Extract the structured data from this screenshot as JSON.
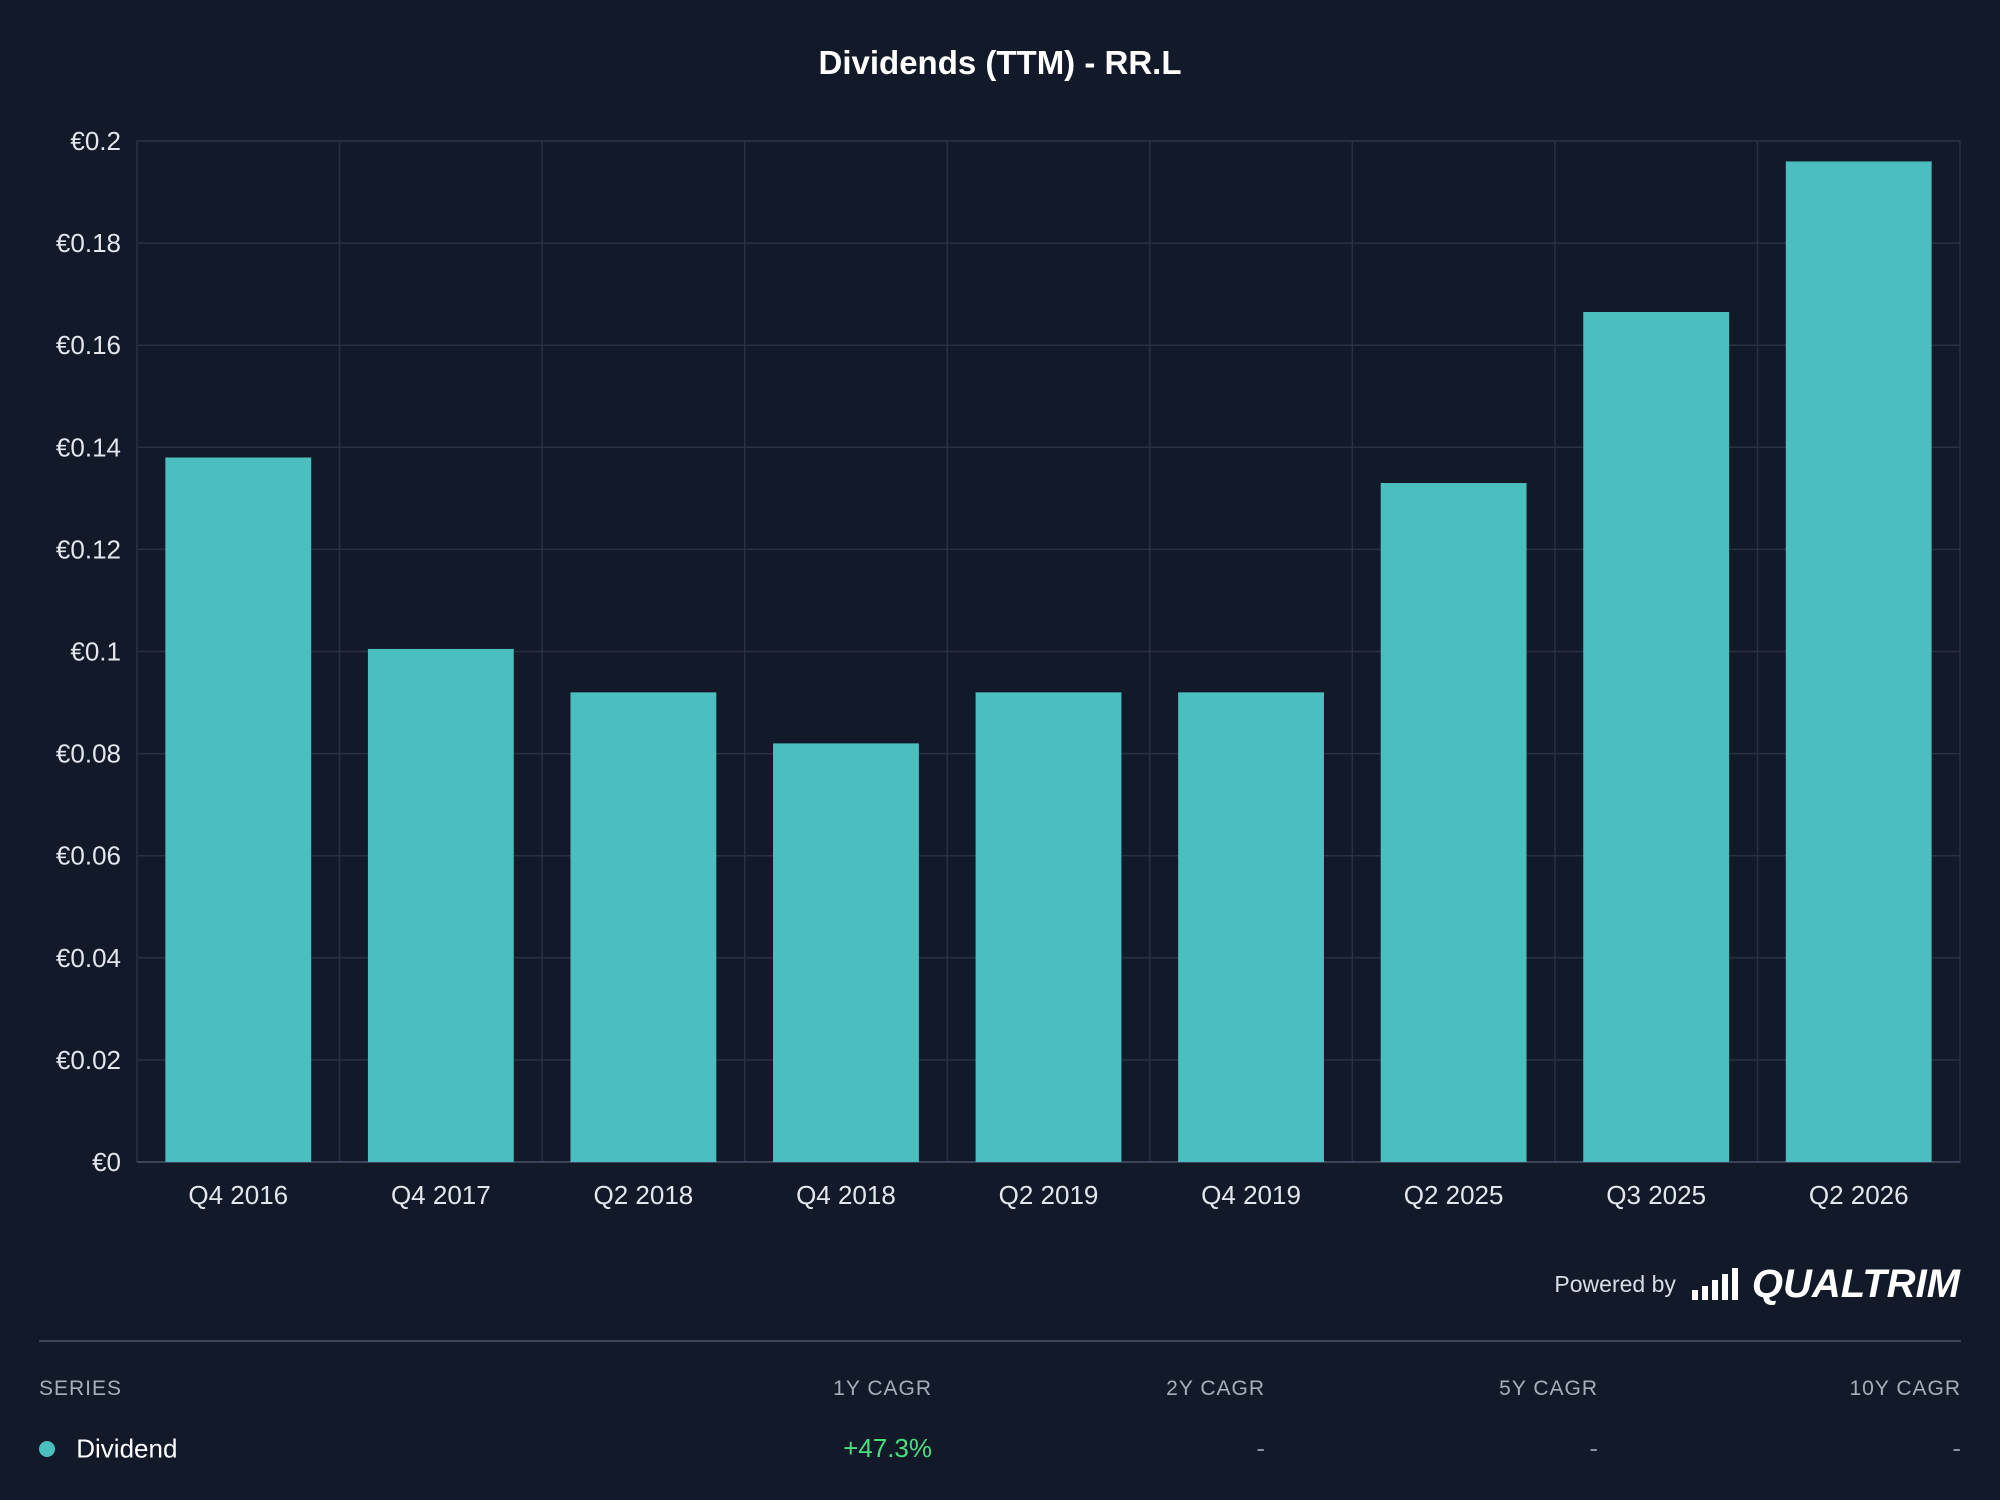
{
  "chart_data": {
    "type": "bar",
    "title": "Dividends (TTM) - RR.L",
    "xlabel": "",
    "ylabel": "",
    "categories": [
      "Q4 2016",
      "Q4 2017",
      "Q2 2018",
      "Q4 2018",
      "Q2 2019",
      "Q4 2019",
      "Q2 2025",
      "Q3 2025",
      "Q2 2026"
    ],
    "series": [
      {
        "name": "Dividend",
        "color": "#4bbfbf",
        "values": [
          0.138,
          0.1005,
          0.092,
          0.082,
          0.092,
          0.092,
          0.133,
          0.1665,
          0.196
        ]
      }
    ],
    "ylim": [
      0,
      0.2
    ],
    "yticks": [
      0,
      0.02,
      0.04,
      0.06,
      0.08,
      0.1,
      0.12,
      0.14,
      0.16,
      0.18,
      0.2
    ],
    "ytick_labels": [
      "€0",
      "€0.02",
      "€0.04",
      "€0.06",
      "€0.08",
      "€0.1",
      "€0.12",
      "€0.14",
      "€0.16",
      "€0.18",
      "€0.2"
    ],
    "grid": true,
    "legend": "none"
  },
  "footer": {
    "powered_label": "Powered by",
    "brand": "QUALTRIM"
  },
  "stats": {
    "headers": {
      "series": "SERIES",
      "y1": "1Y CAGR",
      "y2": "2Y CAGR",
      "y5": "5Y CAGR",
      "y10": "10Y CAGR"
    },
    "rows": [
      {
        "name": "Dividend",
        "color": "#4bbfbf",
        "y1": "+47.3%",
        "y1_color": "#4ade80",
        "y2": "-",
        "y5": "-",
        "y10": "-"
      }
    ]
  },
  "colors": {
    "background": "#121929",
    "grid": "#283042",
    "bar": "#4bbfbf",
    "positive": "#4ade80"
  }
}
